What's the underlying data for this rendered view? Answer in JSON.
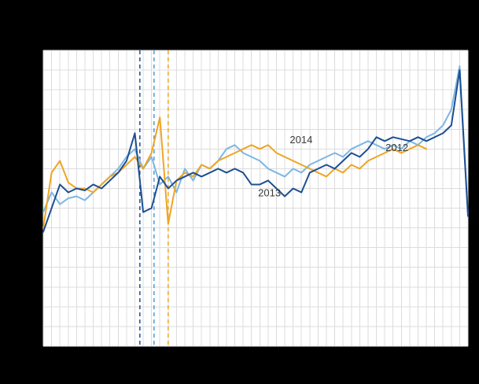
{
  "page": {
    "background": "#000000",
    "plot_background": "#ffffff"
  },
  "chart_data": {
    "type": "line",
    "x_unit": "week",
    "xlim": [
      1,
      52
    ],
    "ylim": [
      0,
      150
    ],
    "grid": {
      "x_step": 1,
      "y_step": 10,
      "color": "#dcdcdc",
      "on": true
    },
    "legend": "none",
    "x": [
      1,
      2,
      3,
      4,
      5,
      6,
      7,
      8,
      9,
      10,
      11,
      12,
      13,
      14,
      15,
      16,
      17,
      18,
      19,
      20,
      21,
      22,
      23,
      24,
      25,
      26,
      27,
      28,
      29,
      30,
      31,
      32,
      33,
      34,
      35,
      36,
      37,
      38,
      39,
      40,
      41,
      42,
      43,
      44,
      45,
      46,
      47,
      48,
      49,
      50,
      51,
      52
    ],
    "series": [
      {
        "name": "2012",
        "color": "#7db6e3",
        "values": [
          68,
          78,
          72,
          75,
          76,
          74,
          78,
          82,
          86,
          90,
          96,
          100,
          90,
          96,
          82,
          86,
          78,
          90,
          84,
          92,
          90,
          94,
          100,
          102,
          98,
          96,
          94,
          90,
          88,
          86,
          90,
          88,
          92,
          94,
          96,
          98,
          96,
          100,
          102,
          104,
          102,
          100,
          102,
          100,
          104,
          102,
          106,
          108,
          112,
          120,
          142,
          67
        ]
      },
      {
        "name": "2014",
        "color": "#efa521",
        "values": [
          60,
          88,
          94,
          83,
          80,
          80,
          78,
          82,
          86,
          88,
          92,
          96,
          90,
          98,
          116,
          62,
          84,
          88,
          86,
          92,
          90,
          94,
          96,
          98,
          100,
          102,
          100,
          102,
          98,
          96,
          94,
          92,
          90,
          88,
          86,
          90,
          88,
          92,
          90,
          94,
          96,
          98,
          100,
          98,
          100,
          102,
          100
        ]
      },
      {
        "name": "2013",
        "color": "#1d4f91",
        "values": [
          58,
          70,
          82,
          78,
          80,
          79,
          82,
          80,
          84,
          88,
          94,
          108,
          68,
          70,
          86,
          80,
          84,
          86,
          88,
          86,
          88,
          90,
          88,
          90,
          88,
          82,
          82,
          84,
          80,
          76,
          80,
          78,
          88,
          90,
          92,
          90,
          94,
          98,
          96,
          100,
          106,
          104,
          106,
          105,
          104,
          106,
          104,
          106,
          108,
          112,
          140,
          66
        ]
      }
    ],
    "reference_lines": [
      {
        "series": "2013",
        "x": 12.6,
        "color": "#1d4f91",
        "style": "dashed"
      },
      {
        "series": "2012",
        "x": 14.3,
        "color": "#4f9bd6",
        "style": "dashed"
      },
      {
        "series": "2014",
        "x": 16.0,
        "color": "#efa521",
        "style": "dashed"
      }
    ],
    "annotations": [
      {
        "text": "2014",
        "x": 30.6,
        "y": 103,
        "color": "#3a3a3a"
      },
      {
        "text": "2013",
        "x": 26.8,
        "y": 76,
        "color": "#3a3a3a"
      },
      {
        "text": "2012",
        "x": 42.1,
        "y": 99,
        "color": "#3a3a3a"
      }
    ]
  }
}
